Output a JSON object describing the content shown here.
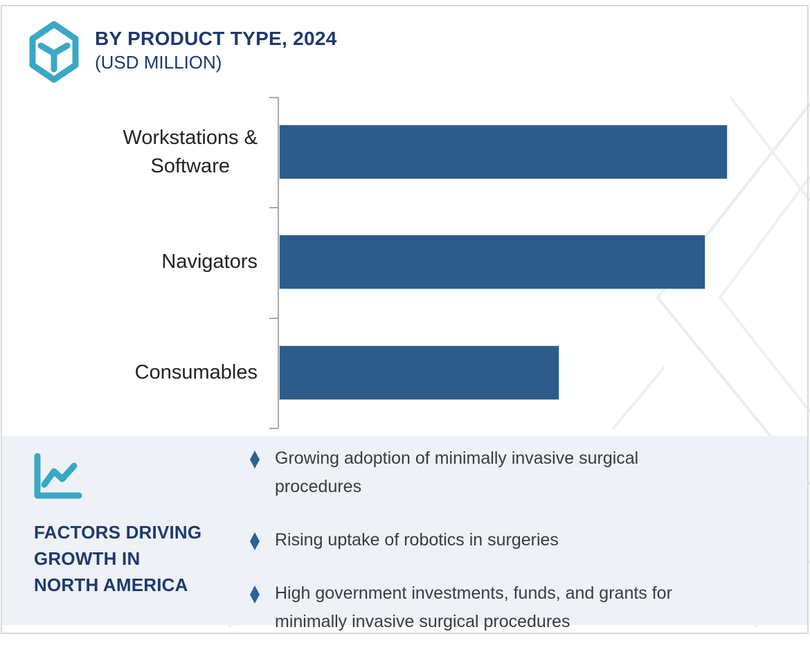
{
  "header": {
    "title": "BY PRODUCT TYPE, 2024",
    "subtitle": "(USD MILLION)",
    "logo_icon": "hexagon-y-logo-icon"
  },
  "chart_data": {
    "type": "bar",
    "orientation": "horizontal",
    "title": "BY PRODUCT TYPE, 2024 (USD MILLION)",
    "categories": [
      "Workstations &\nSoftware",
      "Navigators",
      "Consumables"
    ],
    "values_pct_of_longest_bar": [
      100,
      95,
      62.5
    ],
    "value_axis_labels_visible": false,
    "data_labels_visible": false,
    "gridlines": false,
    "legend": "none",
    "bar_color": "#2d5c8c",
    "axis_color": "#a9a9a9",
    "label_color": "#222222"
  },
  "factors": {
    "icon": "line-chart-icon",
    "title_lines": [
      "FACTORS DRIVING",
      "GROWTH IN",
      "NORTH AMERICA"
    ],
    "bullet_icon": "diamond-bullet-icon",
    "bullets": [
      "Growing adoption of minimally invasive surgical\nprocedures",
      "Rising uptake of robotics in surgeries",
      "High government investments, funds, and grants for\nminimally invasive surgical procedures"
    ]
  },
  "colors": {
    "navy_heading": "#1e3a6d",
    "teal_accent": "#39a8c5",
    "bar_blue": "#2d5c8c",
    "bullet_diamond_blue": "#2b6399",
    "panel_background": "#eef1f5",
    "axis_gray": "#a9a9a9",
    "body_text": "#3c3c3c",
    "frame_border": "#d9d9d9",
    "watermark_line": "#ececec"
  }
}
